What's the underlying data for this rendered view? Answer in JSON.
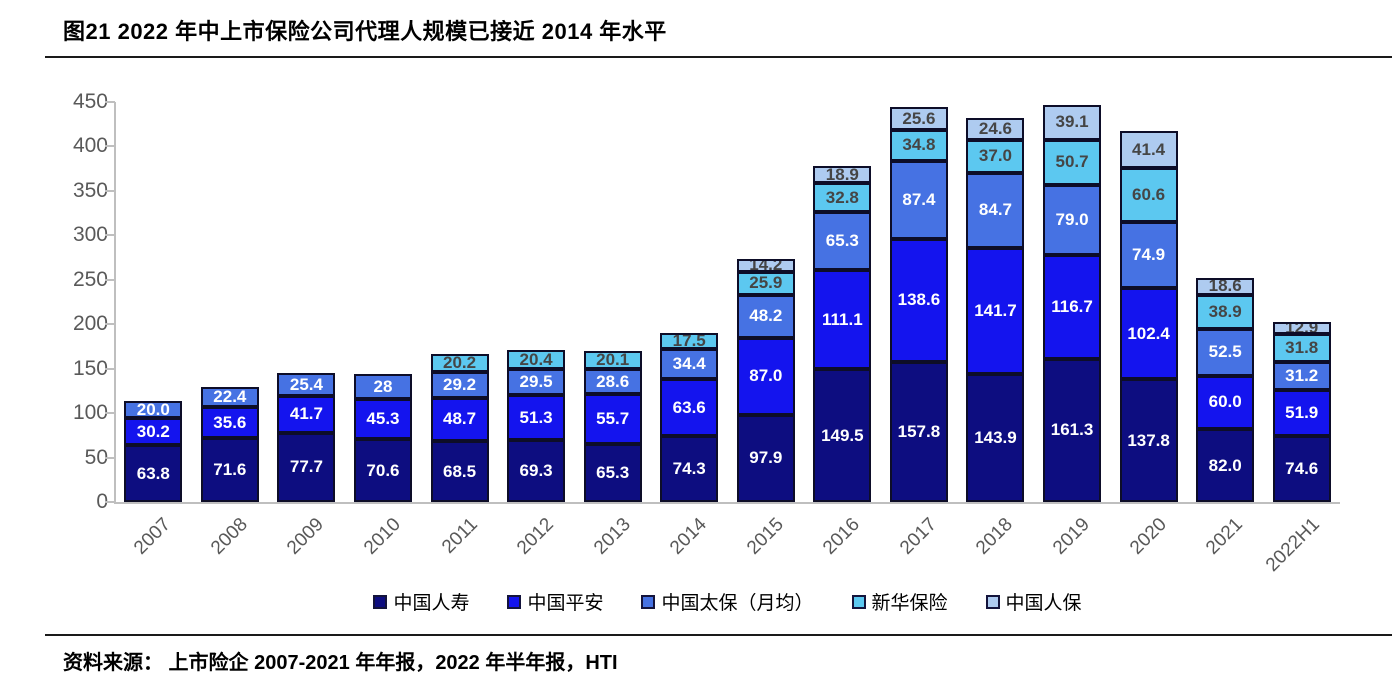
{
  "title": "图21 2022 年中上市保险公司代理人规模已接近 2014 年水平",
  "source": "资料来源： 上市险企 2007-2021 年年报，2022 年半年报，HTI",
  "chart_data": {
    "type": "bar",
    "stacked": true,
    "title": "图21 2022 年中上市保险公司代理人规模已接近 2014 年水平",
    "xlabel": "",
    "ylabel": "",
    "ylim": [
      0,
      450
    ],
    "yticks": [
      0,
      50,
      100,
      150,
      200,
      250,
      300,
      350,
      400,
      450
    ],
    "grid": false,
    "legend_position": "bottom",
    "categories": [
      "2007",
      "2008",
      "2009",
      "2010",
      "2011",
      "2012",
      "2013",
      "2014",
      "2015",
      "2016",
      "2017",
      "2018",
      "2019",
      "2020",
      "2021",
      "2022H1"
    ],
    "series": [
      {
        "name": "中国人寿",
        "color": "#0d0d80",
        "label_color": "#ffffff",
        "values": [
          63.8,
          71.6,
          77.7,
          70.6,
          68.5,
          69.3,
          65.3,
          74.3,
          97.9,
          149.5,
          157.8,
          143.9,
          161.3,
          137.8,
          82.0,
          74.6
        ],
        "labels": [
          "63.8",
          "71.6",
          "77.7",
          "70.6",
          "68.5",
          "69.3",
          "65.3",
          "74.3",
          "97.9",
          "149.5",
          "157.8",
          "143.9",
          "161.3",
          "137.8",
          "82.0",
          "74.6"
        ]
      },
      {
        "name": "中国平安",
        "color": "#1414ee",
        "label_color": "#ffffff",
        "values": [
          30.2,
          35.6,
          41.7,
          45.3,
          48.7,
          51.3,
          55.7,
          63.6,
          87.0,
          111.1,
          138.6,
          141.7,
          116.7,
          102.4,
          60.0,
          51.9
        ],
        "labels": [
          "30.2",
          "35.6",
          "41.7",
          "45.3",
          "48.7",
          "51.3",
          "55.7",
          "63.6",
          "87.0",
          "111.1",
          "138.6",
          "141.7",
          "116.7",
          "102.4",
          "60.0",
          "51.9"
        ]
      },
      {
        "name": "中国太保（月均）",
        "color": "#4672e3",
        "label_color": "#ffffff",
        "values": [
          20.0,
          22.4,
          25.4,
          28,
          29.2,
          29.5,
          28.6,
          34.4,
          48.2,
          65.3,
          87.4,
          84.7,
          79.0,
          74.9,
          52.5,
          31.2
        ],
        "labels": [
          "20.0",
          "22.4",
          "25.4",
          "28",
          "29.2",
          "29.5",
          "28.6",
          "34.4",
          "48.2",
          "65.3",
          "87.4",
          "84.7",
          "79.0",
          "74.9",
          "52.5",
          "31.2"
        ]
      },
      {
        "name": "新华保险",
        "color": "#5cc8f0",
        "label_color": "#454545",
        "values": [
          null,
          null,
          null,
          null,
          20.2,
          20.4,
          20.1,
          17.5,
          25.9,
          32.8,
          34.8,
          37.0,
          50.7,
          60.6,
          38.9,
          31.8
        ],
        "labels": [
          null,
          null,
          null,
          null,
          "20.2",
          "20.4",
          "20.1",
          "17.5",
          "25.9",
          "32.8",
          "34.8",
          "37.0",
          "50.7",
          "60.6",
          "38.9",
          "31.8"
        ]
      },
      {
        "name": "中国人保",
        "color": "#aecbf0",
        "label_color": "#454545",
        "values": [
          null,
          null,
          null,
          null,
          null,
          null,
          null,
          null,
          14.2,
          18.9,
          25.6,
          24.6,
          39.1,
          41.4,
          18.6,
          12.9
        ],
        "labels": [
          null,
          null,
          null,
          null,
          null,
          null,
          null,
          null,
          "14.2",
          "18.9",
          "25.6",
          "24.6",
          "39.1",
          "41.4",
          "18.6",
          "12.9"
        ]
      }
    ]
  },
  "axis_colors": {
    "tick_text": "#595959",
    "axis_line": "#bfbfbf",
    "segment_border": "#0d0d28"
  }
}
